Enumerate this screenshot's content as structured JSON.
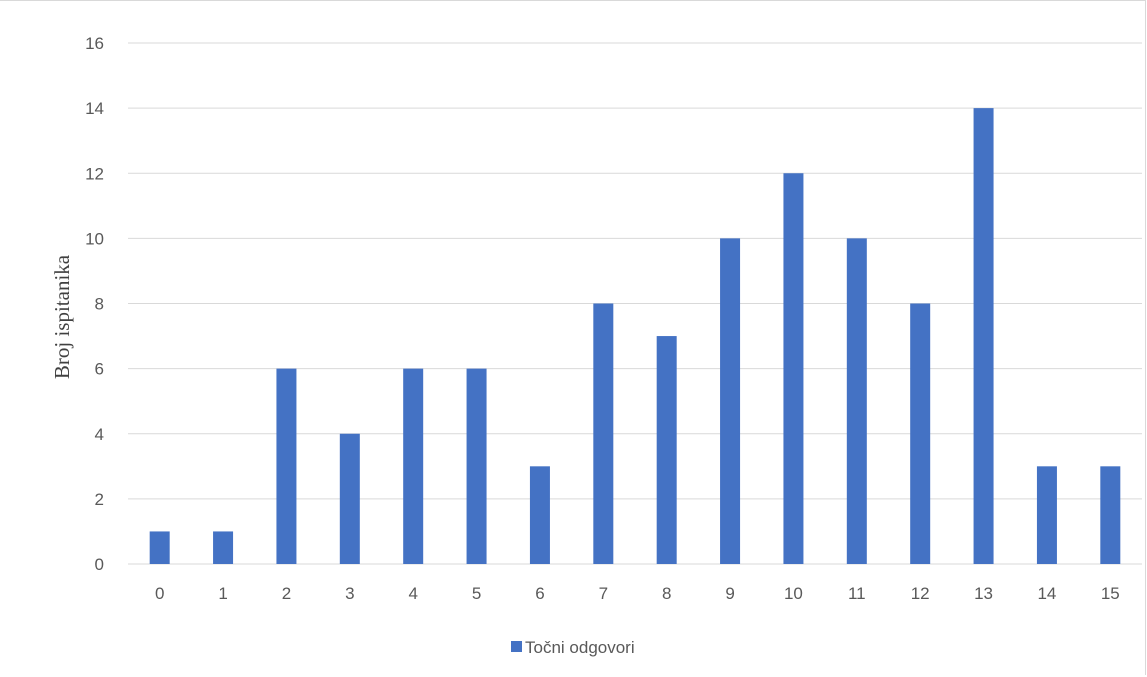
{
  "chart_data": {
    "type": "bar",
    "categories": [
      "0",
      "1",
      "2",
      "3",
      "4",
      "5",
      "6",
      "7",
      "8",
      "9",
      "10",
      "11",
      "12",
      "13",
      "14",
      "15"
    ],
    "series": [
      {
        "name": "Točni odgovori",
        "values": [
          1,
          1,
          6,
          4,
          6,
          6,
          3,
          8,
          7,
          10,
          12,
          10,
          8,
          14,
          3,
          3
        ],
        "color": "#4472c4"
      }
    ],
    "ylabel": "Broj ispitanika",
    "xlabel": "",
    "ylim": [
      0,
      16
    ],
    "yticks": [
      "0",
      "2",
      "4",
      "6",
      "8",
      "10",
      "12",
      "14",
      "16"
    ],
    "grid": true,
    "legend_position": "bottom",
    "gridline_color": "#d9d9d9"
  }
}
